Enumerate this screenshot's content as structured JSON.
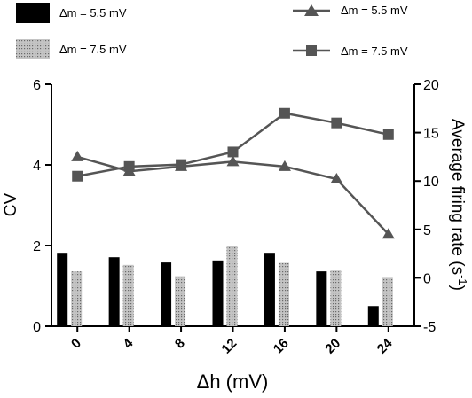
{
  "chart_data": {
    "type": "bar+line",
    "x": {
      "label": "Δh (mV)",
      "categories": [
        "0",
        "4",
        "8",
        "12",
        "16",
        "20",
        "24"
      ]
    },
    "y_left": {
      "label": "CV",
      "ylim": [
        0,
        6
      ],
      "ticks": [
        "0",
        "2",
        "4",
        "6"
      ]
    },
    "y_right": {
      "label": "Average firing rate",
      "unit": "s-1",
      "ylim": [
        -5,
        20
      ],
      "ticks": [
        "-5",
        "0",
        "5",
        "10",
        "15",
        "20"
      ]
    },
    "bar_series": [
      {
        "name": "Δm = 5.5 mV",
        "axis": "left",
        "color": "#000000",
        "values": [
          1.82,
          1.71,
          1.58,
          1.63,
          1.82,
          1.36,
          0.5
        ]
      },
      {
        "name": "Δm = 7.5 mV",
        "axis": "left",
        "color": "#bfbfbf",
        "pattern": "dotted",
        "values": [
          1.36,
          1.52,
          1.24,
          1.99,
          1.57,
          1.38,
          1.2
        ]
      }
    ],
    "line_series": [
      {
        "name": "Δm = 5.5 mV",
        "axis": "right",
        "marker": "triangle",
        "color": "#555555",
        "values": [
          12.5,
          11.0,
          11.5,
          12.0,
          11.5,
          10.2,
          4.5
        ]
      },
      {
        "name": "Δm = 7.5 mV",
        "axis": "right",
        "marker": "square",
        "color": "#555555",
        "values": [
          10.5,
          11.5,
          11.7,
          13.0,
          17.0,
          16.0,
          14.8
        ]
      }
    ],
    "legend": {
      "bars": [
        "Δm = 5.5 mV",
        "Δm = 7.5 mV"
      ],
      "lines": [
        "Δm = 5.5 mV",
        "Δm = 7.5 mV"
      ],
      "placement": "top"
    },
    "grid": false
  }
}
